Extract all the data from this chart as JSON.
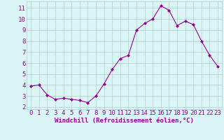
{
  "x": [
    0,
    1,
    2,
    3,
    4,
    5,
    6,
    7,
    8,
    9,
    10,
    11,
    12,
    13,
    14,
    15,
    16,
    17,
    18,
    19,
    20,
    21,
    22,
    23
  ],
  "y": [
    3.9,
    4.0,
    3.1,
    2.7,
    2.8,
    2.7,
    2.6,
    2.4,
    3.0,
    4.1,
    5.4,
    6.4,
    6.7,
    9.0,
    9.6,
    10.0,
    11.2,
    10.8,
    9.4,
    9.8,
    9.5,
    8.0,
    6.7,
    5.7
  ],
  "line_color": "#990099",
  "marker": "D",
  "marker_size": 2.0,
  "bg_color": "#d9f5f5",
  "grid_color": "#b8d4d4",
  "xlabel": "Windchill (Refroidissement éolien,°C)",
  "ylabel_ticks": [
    2,
    3,
    4,
    5,
    6,
    7,
    8,
    9,
    10,
    11
  ],
  "xticks": [
    0,
    1,
    2,
    3,
    4,
    5,
    6,
    7,
    8,
    9,
    10,
    11,
    12,
    13,
    14,
    15,
    16,
    17,
    18,
    19,
    20,
    21,
    22,
    23
  ],
  "xlim": [
    -0.5,
    23.5
  ],
  "ylim": [
    1.8,
    11.6
  ],
  "xlabel_fontsize": 6.5,
  "tick_fontsize": 6.5,
  "label_color": "#990099"
}
